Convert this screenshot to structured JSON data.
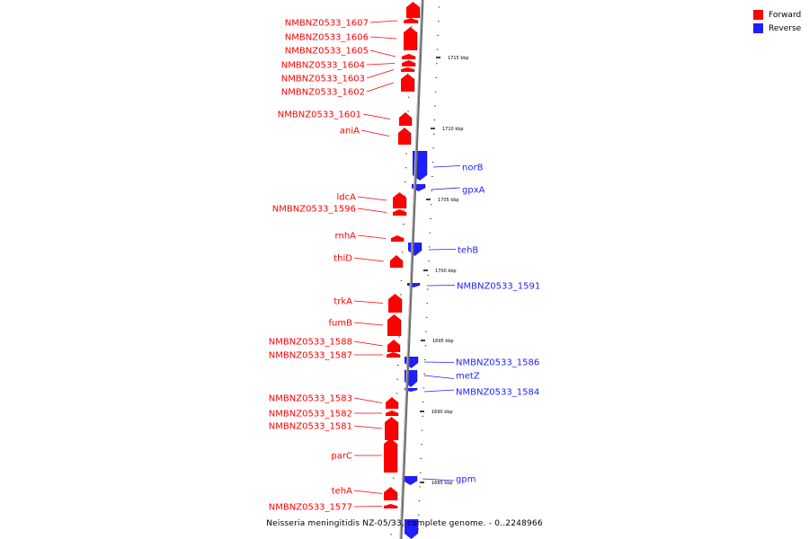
{
  "colors": {
    "forward": "#ff0000",
    "reverse": "#1f1fff",
    "axis": "#707070"
  },
  "legend": {
    "forward_label": "Forward",
    "reverse_label": "Reverse"
  },
  "caption": "Neisseria meningitidis NZ-05/33, complete genome. - 0..2248966",
  "ticks": [
    {
      "label": "1715 kbp"
    },
    {
      "label": "1710 kbp"
    },
    {
      "label": "1705 kbp"
    },
    {
      "label": "1700 kbp"
    },
    {
      "label": "1695 kbp"
    },
    {
      "label": "1690 kbp"
    },
    {
      "label": "1685 kbp"
    }
  ],
  "genes": [
    {
      "name": "",
      "strand": "forward"
    },
    {
      "name": "NMBNZ0533_1607",
      "strand": "forward"
    },
    {
      "name": "NMBNZ0533_1606",
      "strand": "forward"
    },
    {
      "name": "NMBNZ0533_1605",
      "strand": "forward"
    },
    {
      "name": "NMBNZ0533_1604",
      "strand": "forward"
    },
    {
      "name": "NMBNZ0533_1603",
      "strand": "forward"
    },
    {
      "name": "NMBNZ0533_1602",
      "strand": "forward"
    },
    {
      "name": "NMBNZ0533_1601",
      "strand": "forward"
    },
    {
      "name": "aniA",
      "strand": "forward"
    },
    {
      "name": "norB",
      "strand": "reverse"
    },
    {
      "name": "gpxA",
      "strand": "reverse"
    },
    {
      "name": "ldcA",
      "strand": "forward"
    },
    {
      "name": "NMBNZ0533_1596",
      "strand": "forward"
    },
    {
      "name": "rnhA",
      "strand": "forward"
    },
    {
      "name": "tehB",
      "strand": "reverse"
    },
    {
      "name": "thiD",
      "strand": "forward"
    },
    {
      "name": "NMBNZ0533_1591",
      "strand": "reverse"
    },
    {
      "name": "trkA",
      "strand": "forward"
    },
    {
      "name": "fumB",
      "strand": "forward"
    },
    {
      "name": "NMBNZ0533_1588",
      "strand": "forward"
    },
    {
      "name": "NMBNZ0533_1587",
      "strand": "forward"
    },
    {
      "name": "NMBNZ0533_1586",
      "strand": "reverse"
    },
    {
      "name": "metZ",
      "strand": "reverse"
    },
    {
      "name": "NMBNZ0533_1584",
      "strand": "reverse"
    },
    {
      "name": "NMBNZ0533_1583",
      "strand": "forward"
    },
    {
      "name": "NMBNZ0533_1582",
      "strand": "forward"
    },
    {
      "name": "NMBNZ0533_1581",
      "strand": "forward"
    },
    {
      "name": "parC",
      "strand": "forward"
    },
    {
      "name": "gpm",
      "strand": "reverse"
    },
    {
      "name": "tehA",
      "strand": "forward"
    },
    {
      "name": "NMBNZ0533_1577",
      "strand": "forward"
    },
    {
      "name": "",
      "strand": "reverse"
    }
  ]
}
